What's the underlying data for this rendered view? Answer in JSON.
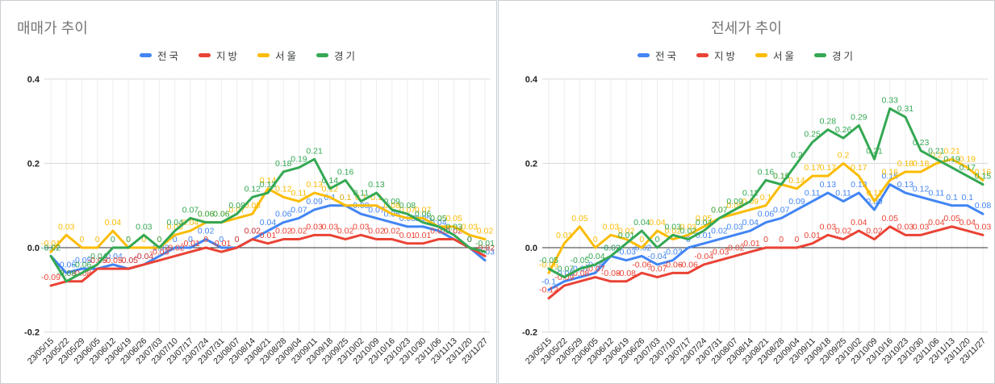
{
  "chart_data": [
    {
      "type": "line",
      "title": "매매가 추이",
      "title_align": "left",
      "xlabel": "",
      "ylabel": "",
      "ylim": [
        -0.2,
        0.4
      ],
      "y_ticks": [
        0.4,
        0.2,
        0.0,
        -0.2
      ],
      "y_tick_labels": [
        "0.4",
        "0.2",
        "0.0",
        "-0.2"
      ],
      "grid": true,
      "legend_position": "top",
      "point_labels": true,
      "categories": [
        "23/05/15",
        "23/05/22",
        "23/05/29",
        "23/06/05",
        "23/06/12",
        "23/06/19",
        "23/06/26",
        "23/07/03",
        "23/07/10",
        "23/07/17",
        "23/07/24",
        "23/07/31",
        "23/08/07",
        "23/08/14",
        "23/08/21",
        "23/08/28",
        "23/09/04",
        "23/09/11",
        "23/09/18",
        "23/09/25",
        "23/10/02",
        "23/10/09",
        "23/10/16",
        "23/10/23",
        "23/10/30",
        "23/11/06",
        "23/11/13",
        "23/11/20",
        "23/11/27"
      ],
      "series": [
        {
          "name": "전국",
          "color": "#4285F4",
          "values": [
            -0.02,
            -0.06,
            -0.05,
            -0.05,
            -0.04,
            -0.05,
            -0.04,
            -0.02,
            0,
            0,
            0.02,
            0,
            0,
            0.02,
            0.04,
            0.06,
            0.07,
            0.09,
            0.1,
            0.1,
            0.08,
            0.07,
            0.06,
            0.05,
            0.05,
            0.04,
            0.02,
            0,
            -0.03
          ]
        },
        {
          "name": "지방",
          "color": "#EA4335",
          "values": [
            -0.09,
            -0.08,
            -0.08,
            -0.05,
            -0.05,
            -0.05,
            -0.04,
            -0.03,
            -0.02,
            -0.01,
            0,
            -0.01,
            0,
            0.02,
            0.01,
            0.02,
            0.02,
            0.03,
            0.03,
            0.02,
            0.03,
            0.02,
            0.02,
            0.01,
            0.01,
            0.02,
            0.02,
            0,
            -0.02
          ]
        },
        {
          "name": "서울",
          "color": "#FBBC04",
          "values": [
            -0.01,
            0.03,
            0,
            0,
            0.04,
            0,
            0,
            0,
            0.03,
            0.04,
            0.06,
            0.06,
            0.07,
            0.08,
            0.14,
            0.12,
            0.11,
            0.13,
            0.12,
            0.1,
            0.1,
            0.1,
            0.08,
            0.07,
            0.07,
            0.05,
            0.05,
            0.03,
            0.02
          ]
        },
        {
          "name": "경기",
          "color": "#34A853",
          "values": [
            -0.02,
            -0.08,
            -0.06,
            -0.04,
            0,
            0,
            0.03,
            0,
            0.04,
            0.07,
            0.06,
            0.06,
            0.08,
            0.12,
            0.13,
            0.18,
            0.19,
            0.21,
            0.14,
            0.16,
            0.11,
            0.13,
            0.09,
            0.08,
            0.06,
            0.05,
            0.03,
            0,
            -0.01
          ]
        }
      ]
    },
    {
      "type": "line",
      "title": "전세가 추이",
      "title_align": "center",
      "xlabel": "",
      "ylabel": "",
      "ylim": [
        -0.2,
        0.4
      ],
      "y_ticks": [
        0.4,
        0.2,
        0.0,
        -0.2
      ],
      "y_tick_labels": [
        "0.4",
        "0.2",
        "0.0",
        "-0.2"
      ],
      "grid": true,
      "legend_position": "top",
      "point_labels": true,
      "categories": [
        "23/05/15",
        "23/05/22",
        "23/05/29",
        "23/06/05",
        "23/06/12",
        "23/06/19",
        "23/06/26",
        "23/07/03",
        "23/07/10",
        "23/07/17",
        "23/07/24",
        "23/07/31",
        "23/08/07",
        "23/08/14",
        "23/08/21",
        "23/08/28",
        "23/09/04",
        "23/09/11",
        "23/09/18",
        "23/09/25",
        "23/10/02",
        "23/10/09",
        "23/10/16",
        "23/10/23",
        "23/10/30",
        "23/11/06",
        "23/11/13",
        "23/11/20",
        "23/11/27"
      ],
      "series": [
        {
          "name": "전국",
          "color": "#4285F4",
          "values": [
            -0.1,
            -0.08,
            -0.07,
            -0.06,
            -0.02,
            -0.03,
            -0.02,
            -0.04,
            -0.03,
            0,
            0.01,
            0.02,
            0.03,
            0.04,
            0.06,
            0.07,
            0.09,
            0.11,
            0.13,
            0.11,
            0.13,
            0.09,
            0.15,
            0.13,
            0.12,
            0.11,
            0.1,
            0.1,
            0.08
          ]
        },
        {
          "name": "지방",
          "color": "#EA4335",
          "values": [
            -0.12,
            -0.09,
            -0.08,
            -0.07,
            -0.08,
            -0.08,
            -0.06,
            -0.07,
            -0.06,
            -0.06,
            -0.04,
            -0.03,
            -0.02,
            -0.01,
            0,
            0,
            0,
            0.01,
            0.03,
            0.02,
            0.04,
            0.02,
            0.05,
            0.03,
            0.03,
            0.04,
            0.05,
            0.04,
            0.03
          ]
        },
        {
          "name": "서울",
          "color": "#FBBC04",
          "values": [
            -0.06,
            0.01,
            0.05,
            0,
            0.03,
            0.02,
            0,
            0.04,
            0.02,
            0.03,
            0.05,
            0.07,
            0.08,
            0.09,
            0.1,
            0.15,
            0.14,
            0.17,
            0.17,
            0.2,
            0.17,
            0.11,
            0.16,
            0.18,
            0.18,
            0.2,
            0.21,
            0.19,
            0.16
          ]
        },
        {
          "name": "경기",
          "color": "#34A853",
          "values": [
            -0.05,
            -0.07,
            -0.05,
            -0.04,
            -0.02,
            0.01,
            0.04,
            0,
            0.03,
            0.02,
            0.04,
            0.07,
            0.09,
            0.11,
            0.16,
            0.15,
            0.2,
            0.25,
            0.28,
            0.26,
            0.29,
            0.21,
            0.33,
            0.31,
            0.23,
            0.21,
            0.19,
            0.17,
            0.15
          ]
        }
      ]
    }
  ]
}
